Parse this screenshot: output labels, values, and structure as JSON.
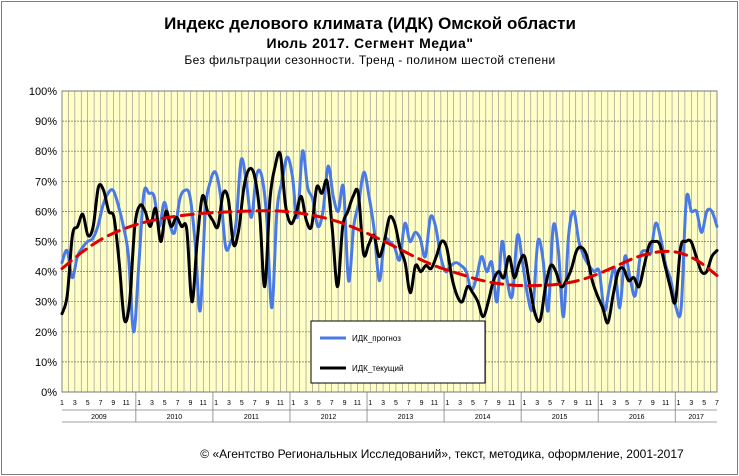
{
  "chart_data": {
    "type": "line",
    "title": "Индекс делового климата (ИДК) Омской области",
    "subtitle": "Июль 2017. Сегмент Медиа\"",
    "note": "Без фильтрации сезонности. Тренд - полином шестой степени",
    "footer": "© «Агентство Региональных Исследований», текст, методика, оформление, 2001-2017",
    "y_ticks": [
      "0%",
      "10%",
      "20%",
      "30%",
      "40%",
      "50%",
      "60%",
      "70%",
      "80%",
      "90%",
      "100%"
    ],
    "ylim": [
      0,
      100
    ],
    "years": [
      "2009",
      "2010",
      "2011",
      "2012",
      "2013",
      "2014",
      "2015",
      "2016",
      "2017"
    ],
    "x_month_ticks": [
      "1",
      "3",
      "5",
      "7",
      "9",
      "11"
    ],
    "x_month_ticks_last": [
      "1",
      "3",
      "5",
      "7"
    ],
    "x_start": "2009-01",
    "x_end": "2017-07",
    "grid": true,
    "colors": {
      "plot_bg": "#ffffc8",
      "grid": "#8c8c8c",
      "prognoz": "#4a7ae6",
      "tekushchiy": "#000000",
      "trend": "#e00000"
    },
    "series": [
      {
        "name": "ИДК_прогноз",
        "values": [
          43,
          47,
          38,
          45,
          48,
          50,
          51,
          55,
          62,
          66,
          67,
          62,
          55,
          45,
          20,
          42,
          66,
          66,
          65,
          55,
          63,
          56,
          53,
          64,
          67,
          65,
          50,
          27,
          60,
          70,
          73,
          65,
          48,
          50,
          56,
          77,
          70,
          58,
          72,
          72,
          58,
          28,
          60,
          70,
          78,
          72,
          58,
          80,
          68,
          64,
          55,
          60,
          75,
          65,
          60,
          68,
          37,
          55,
          63,
          73,
          65,
          54,
          37,
          50,
          50,
          48,
          44,
          56,
          50,
          53,
          51,
          45,
          58,
          55,
          45,
          40,
          42,
          43,
          42,
          40,
          34,
          38,
          45,
          40,
          43,
          30,
          50,
          37,
          32,
          52,
          43,
          32,
          28,
          50,
          44,
          27,
          55,
          47,
          25,
          52,
          60,
          50,
          45,
          42,
          40,
          40,
          27,
          35,
          41,
          28,
          45,
          38,
          32,
          45,
          47,
          46,
          56,
          51,
          42,
          37,
          28,
          28,
          64,
          60,
          60,
          53,
          60,
          60,
          55
        ]
      },
      {
        "name": "ИДК_текущий",
        "values": [
          26,
          32,
          52,
          55,
          59,
          52,
          55,
          68,
          67,
          60,
          58,
          43,
          24,
          30,
          55,
          62,
          60,
          55,
          61,
          50,
          60,
          55,
          58,
          55,
          54,
          30,
          50,
          65,
          60,
          57,
          55,
          66,
          64,
          49,
          54,
          68,
          74,
          72,
          60,
          35,
          64,
          75,
          79,
          62,
          56,
          59,
          65,
          57,
          55,
          68,
          66,
          70,
          54,
          35,
          55,
          60,
          65,
          66,
          46,
          49,
          52,
          45,
          50,
          58,
          56,
          48,
          43,
          33,
          42,
          40,
          42,
          41,
          45,
          50,
          48,
          38,
          32,
          30,
          35,
          33,
          30,
          25,
          30,
          37,
          40,
          38,
          45,
          38,
          43,
          45,
          35,
          26,
          24,
          35,
          42,
          40,
          35,
          37,
          41,
          47,
          48,
          45,
          37,
          32,
          28,
          23,
          32,
          40,
          41,
          37,
          38,
          35,
          42,
          49,
          50,
          49,
          42,
          35,
          30,
          48,
          50,
          50,
          45,
          40,
          40,
          45,
          47
        ]
      },
      {
        "name": "Тренд (полином шестой степени)",
        "values": [
          41.0,
          46.4,
          50.8,
          53.9,
          56.1,
          57.6,
          58.6,
          59.3,
          59.7,
          60.0,
          60.2,
          60.1,
          59.4,
          58.2,
          56.4,
          53.8,
          50.8,
          47.5,
          44.2,
          41.4,
          39.3,
          37.3,
          36.0,
          35.4,
          35.4,
          35.8,
          37.0,
          39.2,
          42.1,
          44.9,
          46.5,
          46.4,
          43.7,
          38.7
        ]
      }
    ]
  },
  "legend": {
    "items": [
      {
        "label": "ИДК_прогноз",
        "color": "#4a7ae6"
      },
      {
        "label": "ИДК_текущий",
        "color": "#000000"
      }
    ]
  }
}
